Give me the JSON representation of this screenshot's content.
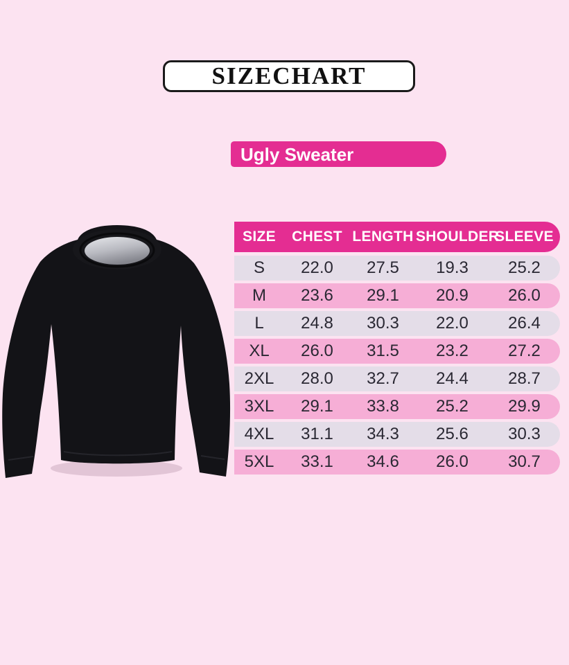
{
  "page": {
    "background_color": "#fce3f1",
    "accent_color": "#e42d92",
    "row_alt_color_1": "#e4dde8",
    "row_alt_color_2": "#f6aed6",
    "cell_text_color": "#2a2833"
  },
  "banner": {
    "title": "SIZECHART"
  },
  "product": {
    "label": "Ugly Sweater"
  },
  "sweater_image": {
    "description": "black crew-neck sweater, front view"
  },
  "chart_data": {
    "type": "table",
    "title": "Ugly Sweater",
    "columns": [
      "SIZE",
      "CHEST",
      "LENGTH",
      "SHOULDER",
      "SLEEVE"
    ],
    "rows": [
      [
        "S",
        "22.0",
        "27.5",
        "19.3",
        "25.2"
      ],
      [
        "M",
        "23.6",
        "29.1",
        "20.9",
        "26.0"
      ],
      [
        "L",
        "24.8",
        "30.3",
        "22.0",
        "26.4"
      ],
      [
        "XL",
        "26.0",
        "31.5",
        "23.2",
        "27.2"
      ],
      [
        "2XL",
        "28.0",
        "32.7",
        "24.4",
        "28.7"
      ],
      [
        "3XL",
        "29.1",
        "33.8",
        "25.2",
        "29.9"
      ],
      [
        "4XL",
        "31.1",
        "34.3",
        "25.6",
        "30.3"
      ],
      [
        "5XL",
        "33.1",
        "34.6",
        "26.0",
        "30.7"
      ]
    ]
  }
}
